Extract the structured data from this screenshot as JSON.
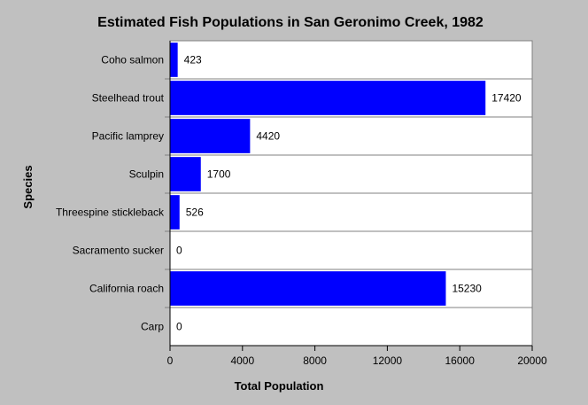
{
  "chart_data": {
    "type": "bar",
    "orientation": "horizontal",
    "title": "Estimated Fish Populations in San Geronimo Creek, 1982",
    "xlabel": "Total Population",
    "ylabel": "Species",
    "categories": [
      "Coho salmon",
      "Steelhead trout",
      "Pacific lamprey",
      "Sculpin",
      "Threespine stickleback",
      "Sacramento sucker",
      "California roach",
      "Carp"
    ],
    "values": [
      423,
      17420,
      4420,
      1700,
      526,
      0,
      15230,
      0
    ],
    "xlim": [
      0,
      20000
    ],
    "xticks": [
      0,
      4000,
      8000,
      12000,
      16000,
      20000
    ],
    "bar_color": "#0000ff",
    "plot_background": "#ffffff",
    "page_background": "#c0c0c0",
    "grid": "horizontal separators"
  }
}
